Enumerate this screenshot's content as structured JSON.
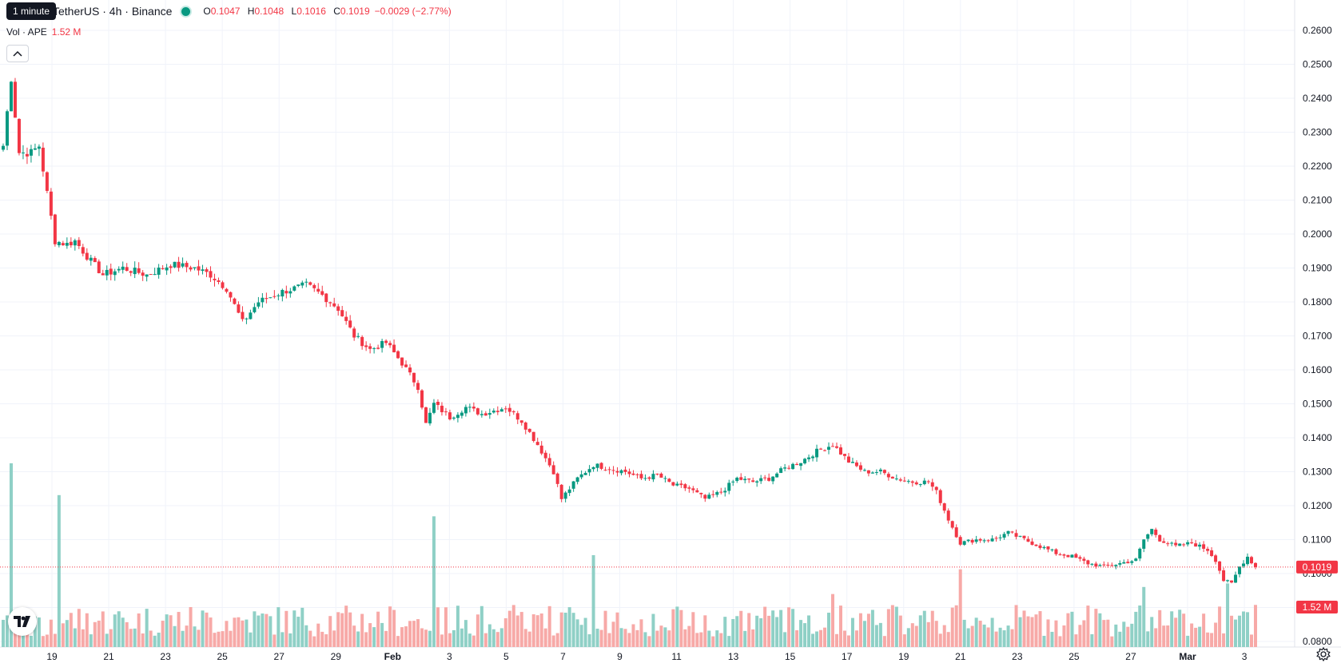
{
  "tooltip": "1 minute",
  "legend": {
    "symbol": "TetherUS · 4h · Binance",
    "open_label": "O",
    "open": "0.1047",
    "high_label": "H",
    "high": "0.1048",
    "low_label": "L",
    "low": "0.1016",
    "close_label": "C",
    "close": "0.1019",
    "change": "−0.0029 (−2.77%)"
  },
  "volume": {
    "label": "Vol · APE",
    "value": "1.52 M"
  },
  "icons": {
    "collapse": "chevron-up-icon",
    "logo": "tradingview-logo-icon",
    "settings": "gear-icon"
  },
  "colors": {
    "up": "#089981",
    "down": "#f23645",
    "up_volume": "#8fd0c6",
    "down_volume": "#f7a9a7"
  },
  "chart_data": {
    "type": "candlestick",
    "interval": "4h",
    "price_axis": {
      "min": 0.08,
      "max": 0.26,
      "step": 0.01,
      "tick_decimals": 4
    },
    "x_ticks": [
      "19",
      "21",
      "23",
      "25",
      "27",
      "29",
      "Feb",
      "3",
      "5",
      "7",
      "9",
      "11",
      "13",
      "15",
      "17",
      "19",
      "21",
      "23",
      "25",
      "27",
      "Mar",
      "3"
    ],
    "last_price": 0.1019,
    "last_price_label": "0.1019",
    "last_volume_label": "1.52 M",
    "grid": true,
    "anchors": [
      [
        0,
        0.226
      ],
      [
        2,
        0.246
      ],
      [
        4,
        0.224
      ],
      [
        7,
        0.224
      ],
      [
        9,
        0.226
      ],
      [
        11,
        0.212
      ],
      [
        13,
        0.198
      ],
      [
        16,
        0.197
      ],
      [
        18,
        0.198
      ],
      [
        22,
        0.192
      ],
      [
        25,
        0.188
      ],
      [
        30,
        0.19
      ],
      [
        36,
        0.188
      ],
      [
        42,
        0.191
      ],
      [
        48,
        0.19
      ],
      [
        52,
        0.188
      ],
      [
        56,
        0.184
      ],
      [
        60,
        0.174
      ],
      [
        64,
        0.18
      ],
      [
        70,
        0.183
      ],
      [
        76,
        0.185
      ],
      [
        80,
        0.182
      ],
      [
        84,
        0.178
      ],
      [
        88,
        0.17
      ],
      [
        92,
        0.166
      ],
      [
        96,
        0.168
      ],
      [
        100,
        0.162
      ],
      [
        104,
        0.155
      ],
      [
        106,
        0.144
      ],
      [
        108,
        0.15
      ],
      [
        112,
        0.146
      ],
      [
        116,
        0.149
      ],
      [
        120,
        0.147
      ],
      [
        126,
        0.149
      ],
      [
        130,
        0.145
      ],
      [
        134,
        0.138
      ],
      [
        138,
        0.13
      ],
      [
        140,
        0.122
      ],
      [
        144,
        0.128
      ],
      [
        148,
        0.132
      ],
      [
        152,
        0.131
      ],
      [
        156,
        0.13
      ],
      [
        160,
        0.128
      ],
      [
        164,
        0.129
      ],
      [
        168,
        0.126
      ],
      [
        172,
        0.125
      ],
      [
        176,
        0.122
      ],
      [
        180,
        0.124
      ],
      [
        184,
        0.128
      ],
      [
        188,
        0.127
      ],
      [
        192,
        0.128
      ],
      [
        196,
        0.131
      ],
      [
        200,
        0.133
      ],
      [
        204,
        0.136
      ],
      [
        208,
        0.138
      ],
      [
        212,
        0.133
      ],
      [
        216,
        0.13
      ],
      [
        220,
        0.13
      ],
      [
        224,
        0.128
      ],
      [
        228,
        0.127
      ],
      [
        232,
        0.127
      ],
      [
        234,
        0.124
      ],
      [
        237,
        0.116
      ],
      [
        240,
        0.109
      ],
      [
        244,
        0.11
      ],
      [
        248,
        0.11
      ],
      [
        252,
        0.112
      ],
      [
        256,
        0.11
      ],
      [
        260,
        0.108
      ],
      [
        264,
        0.106
      ],
      [
        268,
        0.105
      ],
      [
        272,
        0.103
      ],
      [
        276,
        0.102
      ],
      [
        280,
        0.103
      ],
      [
        284,
        0.104
      ],
      [
        286,
        0.11
      ],
      [
        288,
        0.113
      ],
      [
        290,
        0.11
      ],
      [
        294,
        0.108
      ],
      [
        298,
        0.109
      ],
      [
        302,
        0.107
      ],
      [
        304,
        0.104
      ],
      [
        306,
        0.098
      ],
      [
        308,
        0.097
      ],
      [
        310,
        0.102
      ],
      [
        312,
        0.105
      ],
      [
        314,
        0.1019
      ]
    ],
    "volume_spikes": [
      [
        2,
        2.6
      ],
      [
        14,
        2.15
      ],
      [
        108,
        1.85
      ],
      [
        148,
        1.3
      ],
      [
        240,
        1.1
      ],
      [
        307,
        0.9
      ],
      [
        286,
        0.85
      ],
      [
        208,
        0.75
      ]
    ]
  }
}
